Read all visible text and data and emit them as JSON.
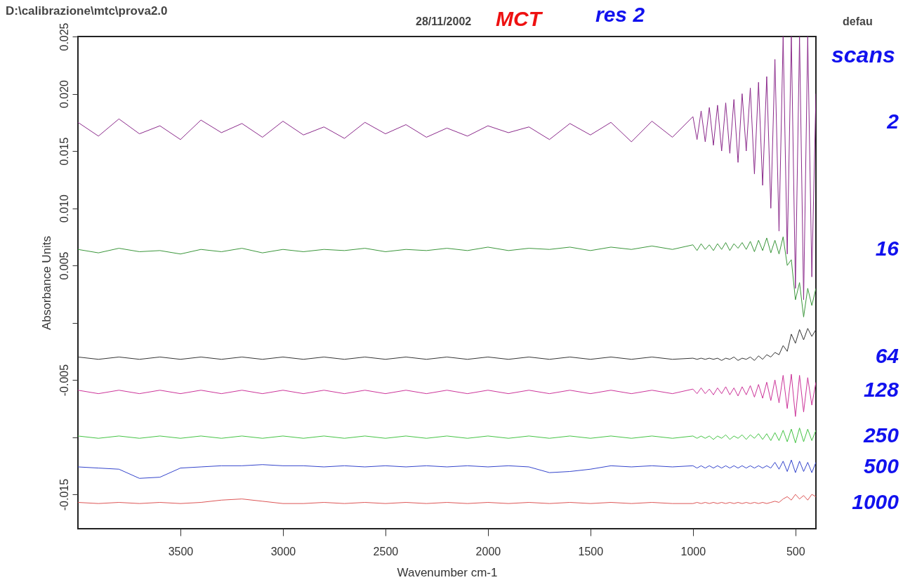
{
  "chart_data": {
    "type": "line",
    "title": "D:\\calibrazione\\mtc\\prova2.0",
    "annotations": [
      "28/11/2002",
      "MCT",
      "res 2",
      "defau"
    ],
    "xlabel": "Wavenumber cm-1",
    "ylabel": "Absorbance Units",
    "legend_title": "scans",
    "xlim": [
      4000,
      400
    ],
    "xticks": [
      3500,
      3000,
      2500,
      2000,
      1500,
      1000,
      500
    ],
    "ylim": [
      -0.018,
      0.025
    ],
    "yticks": [
      {
        "value": 0.025,
        "label": "0.025"
      },
      {
        "value": 0.02,
        "label": "0.020"
      },
      {
        "value": 0.015,
        "label": "0.015"
      },
      {
        "value": 0.01,
        "label": "0.010"
      },
      {
        "value": 0.005,
        "label": "0.005"
      },
      {
        "value": 0,
        "label": null
      },
      {
        "value": -0.005,
        "label": "-0.005"
      },
      {
        "value": -0.01,
        "label": null
      },
      {
        "value": -0.015,
        "label": "-0.015"
      }
    ],
    "grid": false,
    "x": [
      4000,
      3900,
      3800,
      3700,
      3600,
      3500,
      3400,
      3300,
      3200,
      3100,
      3000,
      2900,
      2800,
      2700,
      2600,
      2500,
      2400,
      2300,
      2200,
      2100,
      2000,
      1900,
      1800,
      1700,
      1600,
      1500,
      1400,
      1300,
      1200,
      1100,
      1000,
      980,
      960,
      940,
      920,
      900,
      880,
      860,
      840,
      820,
      800,
      780,
      760,
      740,
      720,
      700,
      680,
      660,
      640,
      620,
      600,
      580,
      560,
      540,
      520,
      500,
      480,
      460,
      440,
      420,
      400
    ],
    "series": [
      {
        "name": "2",
        "color": "#8b2a8b",
        "values": [
          0.0175,
          0.0163,
          0.0178,
          0.0165,
          0.0172,
          0.016,
          0.0177,
          0.0166,
          0.0174,
          0.0162,
          0.0176,
          0.0164,
          0.0171,
          0.0161,
          0.0175,
          0.0165,
          0.0173,
          0.0162,
          0.017,
          0.0163,
          0.0172,
          0.0166,
          0.0171,
          0.016,
          0.0174,
          0.0164,
          0.0175,
          0.0158,
          0.0176,
          0.0162,
          0.018,
          0.016,
          0.0185,
          0.0158,
          0.0188,
          0.0155,
          0.019,
          0.015,
          0.0192,
          0.0148,
          0.0195,
          0.014,
          0.02,
          0.015,
          0.0205,
          0.013,
          0.021,
          0.012,
          0.0215,
          0.01,
          0.023,
          0.008,
          0.025,
          0.006,
          0.025,
          0.003,
          0.025,
          0.002,
          0.025,
          0.004,
          0.02
        ]
      },
      {
        "name": "16",
        "color": "#3a963a",
        "values": [
          0.0064,
          0.0061,
          0.0065,
          0.0062,
          0.0063,
          0.006,
          0.0064,
          0.0062,
          0.0065,
          0.0061,
          0.0064,
          0.0062,
          0.0064,
          0.0063,
          0.0065,
          0.0062,
          0.0064,
          0.0063,
          0.0065,
          0.0063,
          0.0066,
          0.0063,
          0.0065,
          0.0064,
          0.0066,
          0.0063,
          0.0066,
          0.0064,
          0.0067,
          0.0064,
          0.0068,
          0.0063,
          0.0069,
          0.0064,
          0.0068,
          0.0063,
          0.0069,
          0.0064,
          0.007,
          0.0063,
          0.0069,
          0.0065,
          0.007,
          0.0064,
          0.0071,
          0.0062,
          0.0072,
          0.0063,
          0.0074,
          0.0061,
          0.0072,
          0.006,
          0.0075,
          0.005,
          0.0055,
          0.002,
          0.0035,
          0.0005,
          0.003,
          0.0015,
          0.003
        ]
      },
      {
        "name": "64",
        "color": "#333333",
        "values": [
          -0.003,
          -0.0032,
          -0.003,
          -0.0032,
          -0.003,
          -0.0032,
          -0.003,
          -0.0032,
          -0.003,
          -0.0032,
          -0.003,
          -0.0032,
          -0.003,
          -0.0032,
          -0.003,
          -0.0032,
          -0.003,
          -0.0032,
          -0.003,
          -0.0032,
          -0.003,
          -0.0032,
          -0.003,
          -0.0032,
          -0.003,
          -0.0032,
          -0.003,
          -0.0032,
          -0.003,
          -0.0032,
          -0.0031,
          -0.0032,
          -0.0031,
          -0.0032,
          -0.0031,
          -0.0032,
          -0.0031,
          -0.0033,
          -0.0031,
          -0.0032,
          -0.003,
          -0.0033,
          -0.0031,
          -0.0032,
          -0.003,
          -0.0033,
          -0.0029,
          -0.0032,
          -0.0028,
          -0.003,
          -0.0026,
          -0.0028,
          -0.002,
          -0.0025,
          -0.001,
          -0.0018,
          -0.0006,
          -0.0015,
          -0.0005,
          -0.0012,
          -0.0006
        ]
      },
      {
        "name": "128",
        "color": "#cc3399",
        "values": [
          -0.0059,
          -0.0062,
          -0.0059,
          -0.0062,
          -0.0059,
          -0.0062,
          -0.0059,
          -0.0062,
          -0.0059,
          -0.0062,
          -0.0059,
          -0.0062,
          -0.0059,
          -0.0062,
          -0.0059,
          -0.0062,
          -0.0059,
          -0.0062,
          -0.0059,
          -0.0062,
          -0.0059,
          -0.0062,
          -0.0059,
          -0.0062,
          -0.0059,
          -0.0062,
          -0.0059,
          -0.0062,
          -0.0059,
          -0.0062,
          -0.0058,
          -0.0062,
          -0.0057,
          -0.0062,
          -0.0058,
          -0.0063,
          -0.0057,
          -0.0062,
          -0.0056,
          -0.0063,
          -0.0057,
          -0.0064,
          -0.0056,
          -0.0063,
          -0.0055,
          -0.0065,
          -0.0054,
          -0.0066,
          -0.0052,
          -0.0068,
          -0.005,
          -0.007,
          -0.0046,
          -0.0075,
          -0.0045,
          -0.0082,
          -0.0046,
          -0.0078,
          -0.0048,
          -0.0072,
          -0.0052
        ]
      },
      {
        "name": "250",
        "color": "#44c444",
        "values": [
          -0.0099,
          -0.0101,
          -0.0099,
          -0.0101,
          -0.0099,
          -0.0101,
          -0.0099,
          -0.0101,
          -0.0099,
          -0.0101,
          -0.0099,
          -0.0101,
          -0.0099,
          -0.0101,
          -0.0099,
          -0.0101,
          -0.0099,
          -0.0101,
          -0.0099,
          -0.0101,
          -0.0099,
          -0.0101,
          -0.0099,
          -0.0101,
          -0.0099,
          -0.0101,
          -0.0099,
          -0.0101,
          -0.0099,
          -0.0101,
          -0.0099,
          -0.0101,
          -0.0099,
          -0.0101,
          -0.0099,
          -0.0102,
          -0.0099,
          -0.0101,
          -0.0098,
          -0.0102,
          -0.0099,
          -0.0101,
          -0.0098,
          -0.0102,
          -0.0098,
          -0.0101,
          -0.0097,
          -0.0102,
          -0.0097,
          -0.0103,
          -0.0096,
          -0.0103,
          -0.0094,
          -0.0104,
          -0.0093,
          -0.0105,
          -0.0092,
          -0.0104,
          -0.0093,
          -0.0103,
          -0.0094
        ]
      },
      {
        "name": "500",
        "color": "#3344cc",
        "values": [
          -0.0126,
          -0.0127,
          -0.0128,
          -0.0136,
          -0.0135,
          -0.0127,
          -0.0126,
          -0.0125,
          -0.0125,
          -0.0124,
          -0.0125,
          -0.0125,
          -0.0126,
          -0.0125,
          -0.0126,
          -0.0125,
          -0.0126,
          -0.0125,
          -0.0126,
          -0.0125,
          -0.0126,
          -0.0125,
          -0.0126,
          -0.0131,
          -0.013,
          -0.0128,
          -0.0125,
          -0.0126,
          -0.0125,
          -0.0126,
          -0.0125,
          -0.0127,
          -0.0125,
          -0.0127,
          -0.0125,
          -0.0127,
          -0.0125,
          -0.0127,
          -0.0125,
          -0.0127,
          -0.0125,
          -0.0127,
          -0.0125,
          -0.0127,
          -0.0125,
          -0.0127,
          -0.0125,
          -0.0127,
          -0.0125,
          -0.0127,
          -0.0122,
          -0.0128,
          -0.0121,
          -0.013,
          -0.012,
          -0.0131,
          -0.0121,
          -0.013,
          -0.0122,
          -0.0131,
          -0.0122
        ]
      },
      {
        "name": "1000",
        "color": "#dd5555",
        "values": [
          -0.0157,
          -0.0158,
          -0.0157,
          -0.0158,
          -0.0157,
          -0.0158,
          -0.0157,
          -0.0155,
          -0.0154,
          -0.0156,
          -0.0158,
          -0.0158,
          -0.0157,
          -0.0158,
          -0.0157,
          -0.0158,
          -0.0157,
          -0.0158,
          -0.0157,
          -0.0158,
          -0.0157,
          -0.0158,
          -0.0157,
          -0.0158,
          -0.0157,
          -0.0158,
          -0.0157,
          -0.0158,
          -0.0157,
          -0.0158,
          -0.0158,
          -0.0157,
          -0.0158,
          -0.0157,
          -0.0158,
          -0.0157,
          -0.0158,
          -0.0157,
          -0.0158,
          -0.0157,
          -0.0158,
          -0.0157,
          -0.0158,
          -0.0157,
          -0.0158,
          -0.0157,
          -0.0158,
          -0.0157,
          -0.0158,
          -0.0157,
          -0.0156,
          -0.0157,
          -0.0154,
          -0.0152,
          -0.0155,
          -0.015,
          -0.0154,
          -0.0151,
          -0.0155,
          -0.015,
          -0.0152
        ]
      }
    ]
  }
}
